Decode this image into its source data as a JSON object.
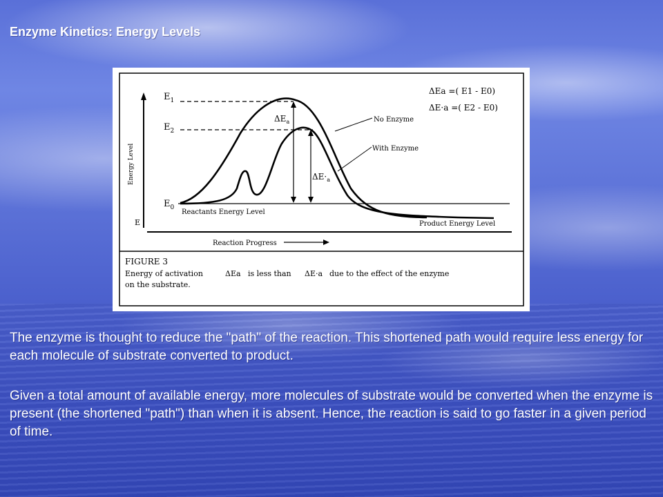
{
  "slide": {
    "title": "Enzyme Kinetics: Energy Levels",
    "paragraph_1": "The enzyme is thought to reduce the \"path\" of the reaction. This shortened path would require less energy for each molecule of substrate converted to product.",
    "paragraph_2": "Given a total amount of available energy, more molecules of substrate would be converted when the enzyme is present (the shortened \"path\") than when it is absent. Hence, the reaction is said to go faster in a given period of time."
  },
  "figure": {
    "y_axis_label": "Energy Level",
    "x_axis_label": "Reaction Progress",
    "level_e1": "E",
    "level_e1_sub": "1",
    "level_e2": "E",
    "level_e2_sub": "2",
    "level_e0": "E",
    "level_e0_sub": "0",
    "axis_corner_label": "E",
    "delta_ea_label": "ΔE",
    "delta_ea_sub": "a",
    "delta_ea_prime_label": "ΔE·",
    "delta_ea_prime_sub": "a",
    "formula_1": "ΔEa =( E1 - E0)",
    "formula_2": "ΔE·a =( E2 - E0)",
    "curve_no_enzyme_label": "No Enzyme",
    "curve_with_enzyme_label": "With Enzyme",
    "reactants_label": "Reactants Energy Level",
    "product_label": "Product Energy Level",
    "caption_title": "FIGURE 3",
    "caption_line_1_a": "Energy of activation",
    "caption_symbol_1": "ΔEa",
    "caption_line_1_b": "is less than",
    "caption_symbol_2": "ΔE·a",
    "caption_line_1_c": "due to the effect of the enzyme",
    "caption_line_2": "on the substrate."
  }
}
